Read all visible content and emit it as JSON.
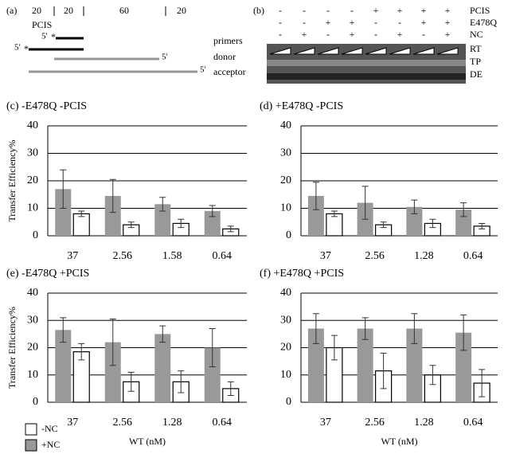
{
  "panel_a": {
    "label": "(a)",
    "segments": [
      "20",
      "20",
      "60",
      "20"
    ],
    "pcis": "PCIS",
    "five_prime": "5'",
    "star": "*",
    "labels": [
      "primers",
      "donor",
      "acceptor"
    ]
  },
  "panel_b": {
    "label": "(b)",
    "rows": [
      {
        "name": "PCIS",
        "signs": [
          "-",
          "-",
          "-",
          "-",
          "+",
          "+",
          "+",
          "+"
        ]
      },
      {
        "name": "E478Q",
        "signs": [
          "-",
          "-",
          "+",
          "+",
          "-",
          "-",
          "+",
          "+"
        ]
      },
      {
        "name": "NC",
        "signs": [
          "-",
          "+",
          "-",
          "+",
          "-",
          "+",
          "-",
          "+"
        ]
      }
    ],
    "lane_labels": [
      "RT",
      "TP",
      "DE"
    ]
  },
  "chart_data": [
    {
      "type": "bar",
      "title": "(c) -E478Q  -PCIS",
      "y_label": "Transfer Efficiency%",
      "categories": [
        "37",
        "2.56",
        "1.58",
        "0.64"
      ],
      "series": [
        {
          "name": "+NC",
          "color": "#999999",
          "values": [
            17,
            14.5,
            11.5,
            9
          ],
          "errors": [
            7,
            6,
            2.5,
            2
          ]
        },
        {
          "name": "-NC",
          "color": "#ffffff",
          "values": [
            8,
            4,
            4.5,
            2.5
          ],
          "errors": [
            1,
            1,
            1.5,
            1
          ]
        }
      ],
      "ylim": [
        0,
        40
      ],
      "yticks": [
        0,
        10,
        20,
        30,
        40
      ],
      "grid": true
    },
    {
      "type": "bar",
      "title": "(d) +E478Q  -PCIS",
      "categories": [
        "37",
        "2.56",
        "1.28",
        "0.64"
      ],
      "series": [
        {
          "name": "+NC",
          "color": "#999999",
          "values": [
            14.5,
            12,
            10.5,
            9.5
          ],
          "errors": [
            5,
            6,
            2.5,
            2.5
          ]
        },
        {
          "name": "-NC",
          "color": "#ffffff",
          "values": [
            8,
            4,
            4.5,
            3.5
          ],
          "errors": [
            1,
            1,
            1.5,
            1
          ]
        }
      ],
      "ylim": [
        0,
        40
      ],
      "yticks": [
        0,
        10,
        20,
        30,
        40
      ],
      "grid": true
    },
    {
      "type": "bar",
      "title": "(e) -E478Q  +PCIS",
      "y_label": "Transfer Efficiency%",
      "x_label": "WT (nM)",
      "categories": [
        "37",
        "2.56",
        "1.28",
        "0.64"
      ],
      "series": [
        {
          "name": "+NC",
          "color": "#999999",
          "values": [
            26.5,
            22,
            25,
            20
          ],
          "errors": [
            4.5,
            8.5,
            3,
            7
          ]
        },
        {
          "name": "-NC",
          "color": "#ffffff",
          "values": [
            18.5,
            7.5,
            7.5,
            5
          ],
          "errors": [
            3,
            3.5,
            4,
            2.5
          ]
        }
      ],
      "ylim": [
        0,
        40
      ],
      "yticks": [
        0,
        10,
        20,
        30,
        40
      ],
      "grid": true,
      "legend": "bottom-left"
    },
    {
      "type": "bar",
      "title": "(f) +E478Q  +PCIS",
      "x_label": "WT (nM)",
      "categories": [
        "37",
        "2.56",
        "1.28",
        "0.64"
      ],
      "series": [
        {
          "name": "+NC",
          "color": "#999999",
          "values": [
            27,
            27,
            27,
            25.5
          ],
          "errors": [
            5.5,
            4,
            5.5,
            6.5
          ]
        },
        {
          "name": "-NC",
          "color": "#ffffff",
          "values": [
            20,
            11.5,
            10,
            7
          ],
          "errors": [
            4.5,
            6.5,
            3.5,
            5
          ]
        }
      ],
      "ylim": [
        0,
        40
      ],
      "yticks": [
        0,
        10,
        20,
        30,
        40
      ],
      "grid": true
    }
  ]
}
